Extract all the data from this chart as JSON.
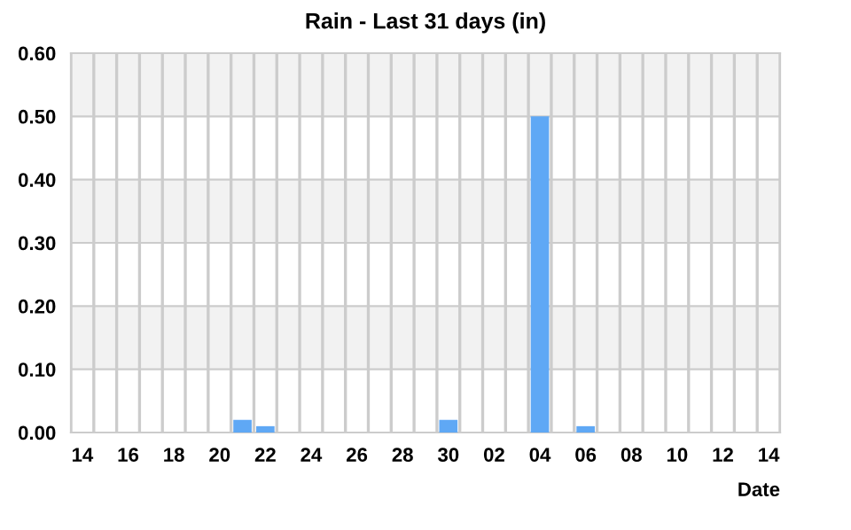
{
  "chart_data": {
    "type": "bar",
    "title": "Rain - Last 31 days (in)",
    "xlabel": "Date",
    "categories": [
      "14",
      null,
      "16",
      null,
      "18",
      null,
      "20",
      null,
      "22",
      null,
      "24",
      null,
      "26",
      null,
      "28",
      null,
      "30",
      null,
      "02",
      null,
      "04",
      null,
      "06",
      null,
      "08",
      null,
      "10",
      null,
      "12",
      null,
      "14"
    ],
    "values": [
      0,
      0,
      0,
      0,
      0,
      0,
      0,
      0.02,
      0.01,
      0,
      0,
      0,
      0,
      0,
      0,
      0,
      0.02,
      0,
      0,
      0,
      0.5,
      0,
      0.01,
      0,
      0,
      0,
      0,
      0,
      0,
      0,
      0
    ],
    "color": "#5fa8f5",
    "ylim": [
      0,
      0.6
    ],
    "yticks": [
      {
        "value": 0,
        "label": "0.00"
      },
      {
        "value": 0.1,
        "label": "0.10"
      },
      {
        "value": 0.2,
        "label": "0.20"
      },
      {
        "value": 0.3,
        "label": "0.30"
      },
      {
        "value": 0.4,
        "label": "0.40"
      },
      {
        "value": 0.5,
        "label": "0.50"
      },
      {
        "value": 0.6,
        "label": "0.60"
      }
    ],
    "bands": [
      {
        "axis": "y",
        "from": 0.1,
        "to": 0.2,
        "color": "#f2f2f2"
      },
      {
        "axis": "y",
        "from": 0.3,
        "to": 0.4,
        "color": "#f2f2f2"
      },
      {
        "axis": "y",
        "from": 0.5,
        "to": 0.6,
        "color": "#f2f2f2"
      }
    ],
    "grid": true,
    "legend": false
  }
}
